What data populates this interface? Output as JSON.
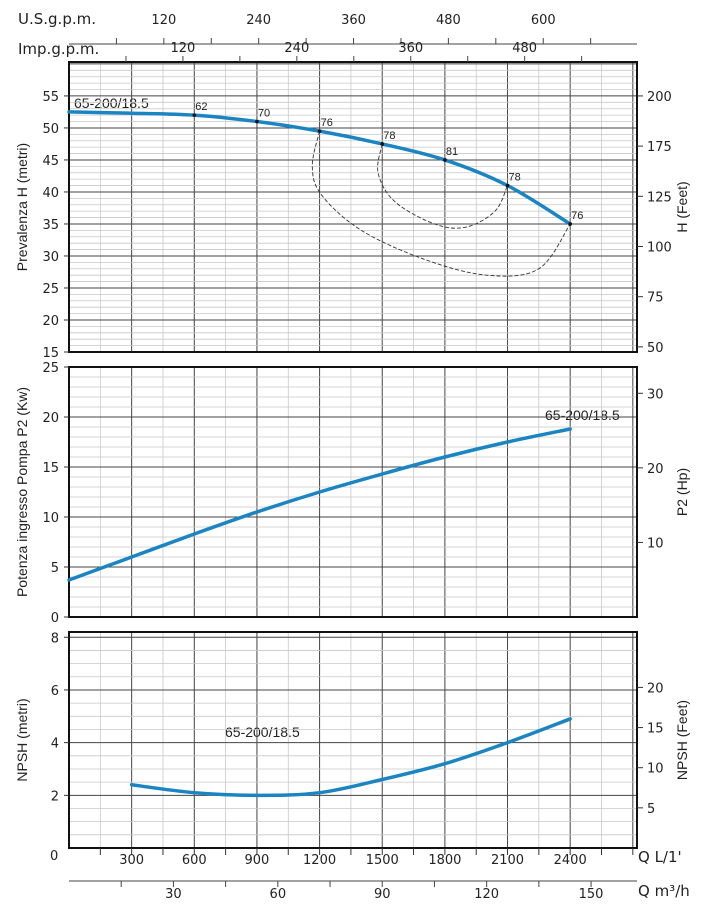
{
  "chart_data": [
    {
      "type": "line",
      "ylabel": "Prevalenza H (metri)",
      "ylabel_right": "H (Feet)",
      "xlim": [
        0,
        2720
      ],
      "ylim": [
        15,
        60.3
      ],
      "yticks": [
        15,
        20,
        25,
        30,
        35,
        40,
        45,
        50,
        55
      ],
      "yticks_right": [
        "200",
        "175",
        "125",
        "100",
        "75",
        "50"
      ],
      "grid": true,
      "series": [
        {
          "name": "65-200/18.5",
          "x": [
            0,
            300,
            600,
            900,
            1200,
            1500,
            1800,
            2100,
            2400
          ],
          "y": [
            52.5,
            52.3,
            52.0,
            51.0,
            49.5,
            47.5,
            45.0,
            41.0,
            35.0
          ]
        }
      ],
      "efficiency_points": [
        {
          "q": 600,
          "h": 52.0,
          "label": "62"
        },
        {
          "q": 900,
          "h": 51.0,
          "label": "70"
        },
        {
          "q": 1200,
          "h": 49.5,
          "label": "76"
        },
        {
          "q": 1500,
          "h": 47.5,
          "label": "78"
        },
        {
          "q": 1800,
          "h": 45.0,
          "label": "81"
        },
        {
          "q": 2100,
          "h": 41.0,
          "label": "78"
        },
        {
          "q": 2400,
          "h": 35.0,
          "label": "76"
        }
      ],
      "iso_efficiency": [
        {
          "name": "76",
          "x": [
            1200,
            1165,
            1210,
            1400,
            1700,
            2000,
            2250,
            2400
          ],
          "y": [
            49.5,
            44,
            39.5,
            34,
            29.5,
            27,
            28,
            35
          ]
        },
        {
          "name": "78",
          "x": [
            1500,
            1480,
            1560,
            1750,
            1900,
            2040,
            2100
          ],
          "y": [
            47.5,
            43,
            38.5,
            35,
            34.5,
            37,
            41
          ]
        }
      ]
    },
    {
      "type": "line",
      "ylabel": "Potenza ingresso Pompa P2 (Kw)",
      "ylabel_right": "P2 (Hp)",
      "xlim": [
        0,
        2720
      ],
      "ylim": [
        0,
        25
      ],
      "yticks": [
        0,
        5,
        10,
        15,
        20,
        25
      ],
      "yticks_right": [
        10,
        20,
        30
      ],
      "grid": true,
      "series": [
        {
          "name": "65-200/18.5",
          "x": [
            0,
            300,
            600,
            900,
            1200,
            1500,
            1800,
            2100,
            2400
          ],
          "y": [
            3.7,
            6.0,
            8.3,
            10.5,
            12.5,
            14.3,
            16.0,
            17.5,
            18.8
          ]
        }
      ]
    },
    {
      "type": "line",
      "ylabel": "NPSH (metri)",
      "ylabel_right": "NPSH (Feet)",
      "xlim": [
        0,
        2720
      ],
      "ylim": [
        0,
        8.2
      ],
      "yticks": [
        2,
        4,
        6,
        8
      ],
      "yticks_right": [
        5,
        10,
        15,
        20
      ],
      "grid": true,
      "series": [
        {
          "name": "65-200/18.5",
          "x": [
            300,
            600,
            900,
            1200,
            1500,
            1800,
            2100,
            2400
          ],
          "y": [
            2.4,
            2.1,
            2.0,
            2.1,
            2.6,
            3.2,
            4.0,
            4.9
          ]
        }
      ]
    }
  ],
  "axes": {
    "q_lmin": {
      "label": "Q L/1'",
      "ticks": [
        300,
        600,
        900,
        1200,
        1500,
        1800,
        2100,
        2400
      ],
      "zero": "0"
    },
    "q_m3h": {
      "label": "Q m³/h",
      "ticks": [
        30,
        60,
        90,
        120,
        150
      ]
    },
    "us_gpm": {
      "label": "U.S.g.p.m.",
      "ticks": [
        120,
        240,
        360,
        480,
        600
      ]
    },
    "imp_gpm": {
      "label": "Imp.g.p.m.",
      "ticks": [
        120,
        240,
        360,
        480
      ]
    }
  },
  "colors": {
    "curve": "#1a85c2",
    "grid_major": "#444444",
    "grid_minor": "#c8c8c8",
    "frame": "#111111"
  }
}
